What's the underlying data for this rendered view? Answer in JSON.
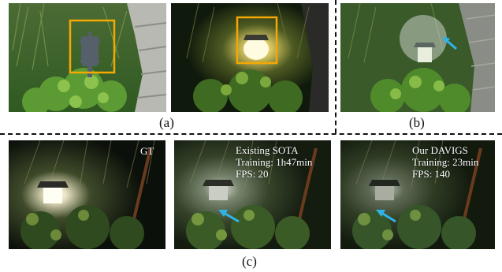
{
  "figure": {
    "captions": {
      "a": "(a)",
      "b": "(b)",
      "c": "(c)"
    },
    "panels": {
      "gt": {
        "label": "GT"
      },
      "sota": {
        "lines": [
          "Existing SOTA",
          "Training: 1h47min",
          "FPS: 20"
        ]
      },
      "ours": {
        "lines": [
          "Our DAVIGS",
          "Training: 23min",
          "FPS: 140"
        ]
      }
    },
    "colors": {
      "highlight_box": "#F5A800",
      "arrow": "#2FB4E8",
      "overlay_text": "#FFFFFF",
      "divider": "#111111"
    }
  }
}
